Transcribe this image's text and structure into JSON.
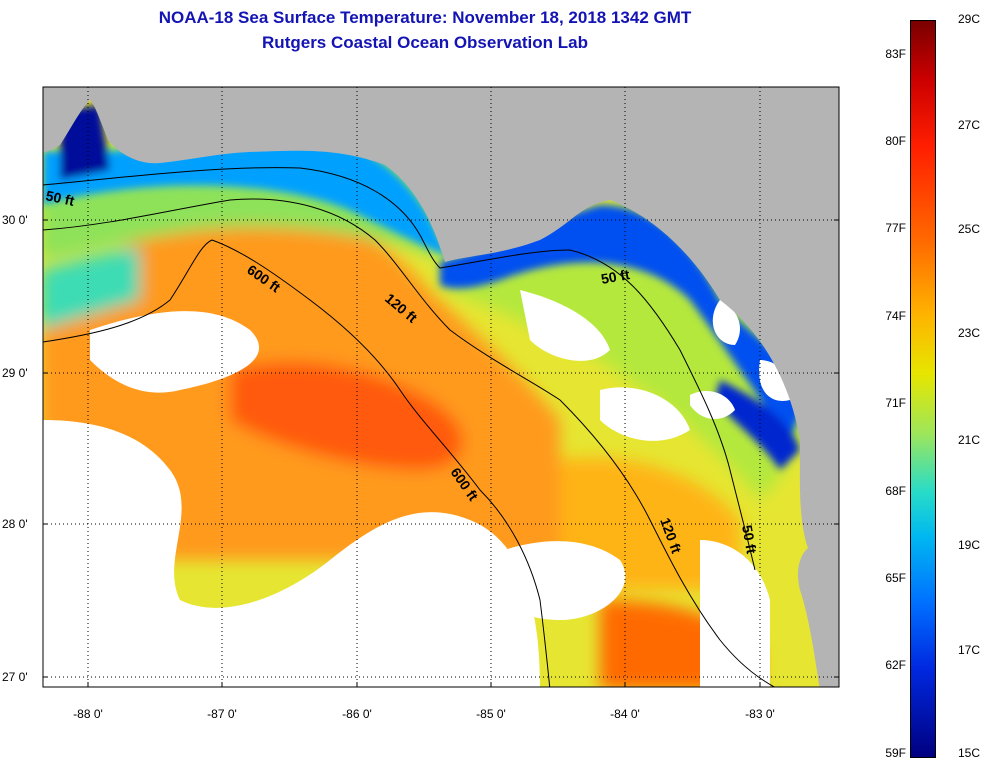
{
  "header": {
    "title": "NOAA-18 Sea Surface Temperature:  November 18, 2018 1342 GMT",
    "subtitle": "Rutgers Coastal Ocean Observation Lab"
  },
  "map": {
    "lat_labels": [
      "30 0'",
      "29 0'",
      "28 0'",
      "27 0'"
    ],
    "lon_labels": [
      "-88 0'",
      "-87 0'",
      "-86 0'",
      "-85 0'",
      "-84 0'",
      "-83 0'"
    ],
    "contour_labels": [
      "50 ft",
      "600 ft",
      "120 ft",
      "50 ft",
      "600 ft",
      "120 ft",
      "50 ft"
    ],
    "colors": {
      "land": "#b4b4b4",
      "cloud": "#ffffff",
      "warm": "#ff6a00",
      "cool": "#0028e0"
    }
  },
  "colorbar": {
    "fahrenheit": [
      "83F",
      "80F",
      "77F",
      "74F",
      "71F",
      "68F",
      "65F",
      "62F",
      "59F"
    ],
    "celsius": [
      "29C",
      "27C",
      "25C",
      "23C",
      "21C",
      "19C",
      "17C",
      "15C"
    ]
  }
}
